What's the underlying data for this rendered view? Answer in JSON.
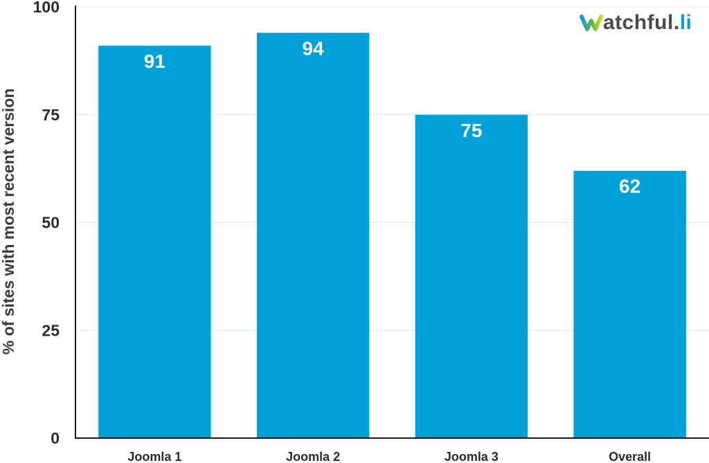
{
  "logo": {
    "text_main": "atchful",
    "text_dot": ".",
    "text_tld": "li",
    "color_main": "#4a4a4a",
    "color_tld": "#00a0d8",
    "gradient": [
      "#1a9ad6",
      "#59b848",
      "#d7d62a"
    ]
  },
  "chart_data": {
    "type": "bar",
    "title": "",
    "xlabel": "",
    "ylabel": "% of sites with most recent version",
    "categories": [
      "Joomla 1",
      "Joomla 2",
      "Joomla 3",
      "Overall"
    ],
    "values": [
      91,
      94,
      75,
      62
    ],
    "data_labels": [
      "91",
      "94",
      "75",
      "62"
    ],
    "ylim": [
      0,
      100
    ],
    "yticks": [
      0,
      25,
      50,
      75,
      100
    ],
    "ytick_labels": [
      "0",
      "25",
      "50",
      "75",
      "100"
    ],
    "grid": true,
    "bar_color": "#00a0d8",
    "axis_color": "#1a1a1a",
    "grid_color": "#e6e6e6"
  }
}
